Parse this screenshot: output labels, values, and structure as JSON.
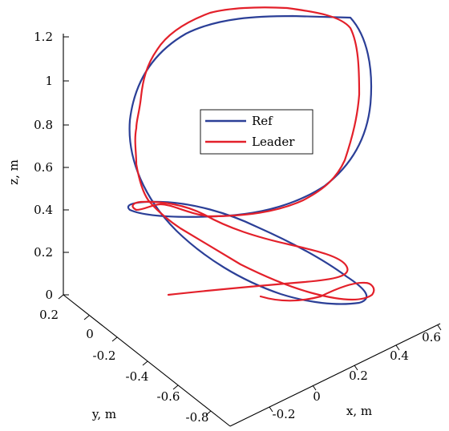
{
  "chart_data": {
    "type": "line",
    "title": "",
    "axes": {
      "x": {
        "label": "x, m",
        "ticks": [
          "-0.2",
          "0",
          "0.2",
          "0.4",
          "0.6"
        ]
      },
      "y": {
        "label": "y, m",
        "ticks": [
          "-0.8",
          "-0.6",
          "-0.4",
          "-0.2",
          "0",
          "0.2"
        ]
      },
      "z": {
        "label": "z, m",
        "ticks": [
          "0",
          "0.2",
          "0.4",
          "0.6",
          "0.8",
          "1",
          "1.2"
        ]
      }
    },
    "legend": {
      "placement": "center",
      "entries": [
        "Ref",
        "Leader"
      ]
    },
    "grid": false,
    "series": [
      {
        "name": "Ref",
        "color": "#2b3f97"
      },
      {
        "name": "Leader",
        "color": "#e3202a"
      }
    ]
  }
}
